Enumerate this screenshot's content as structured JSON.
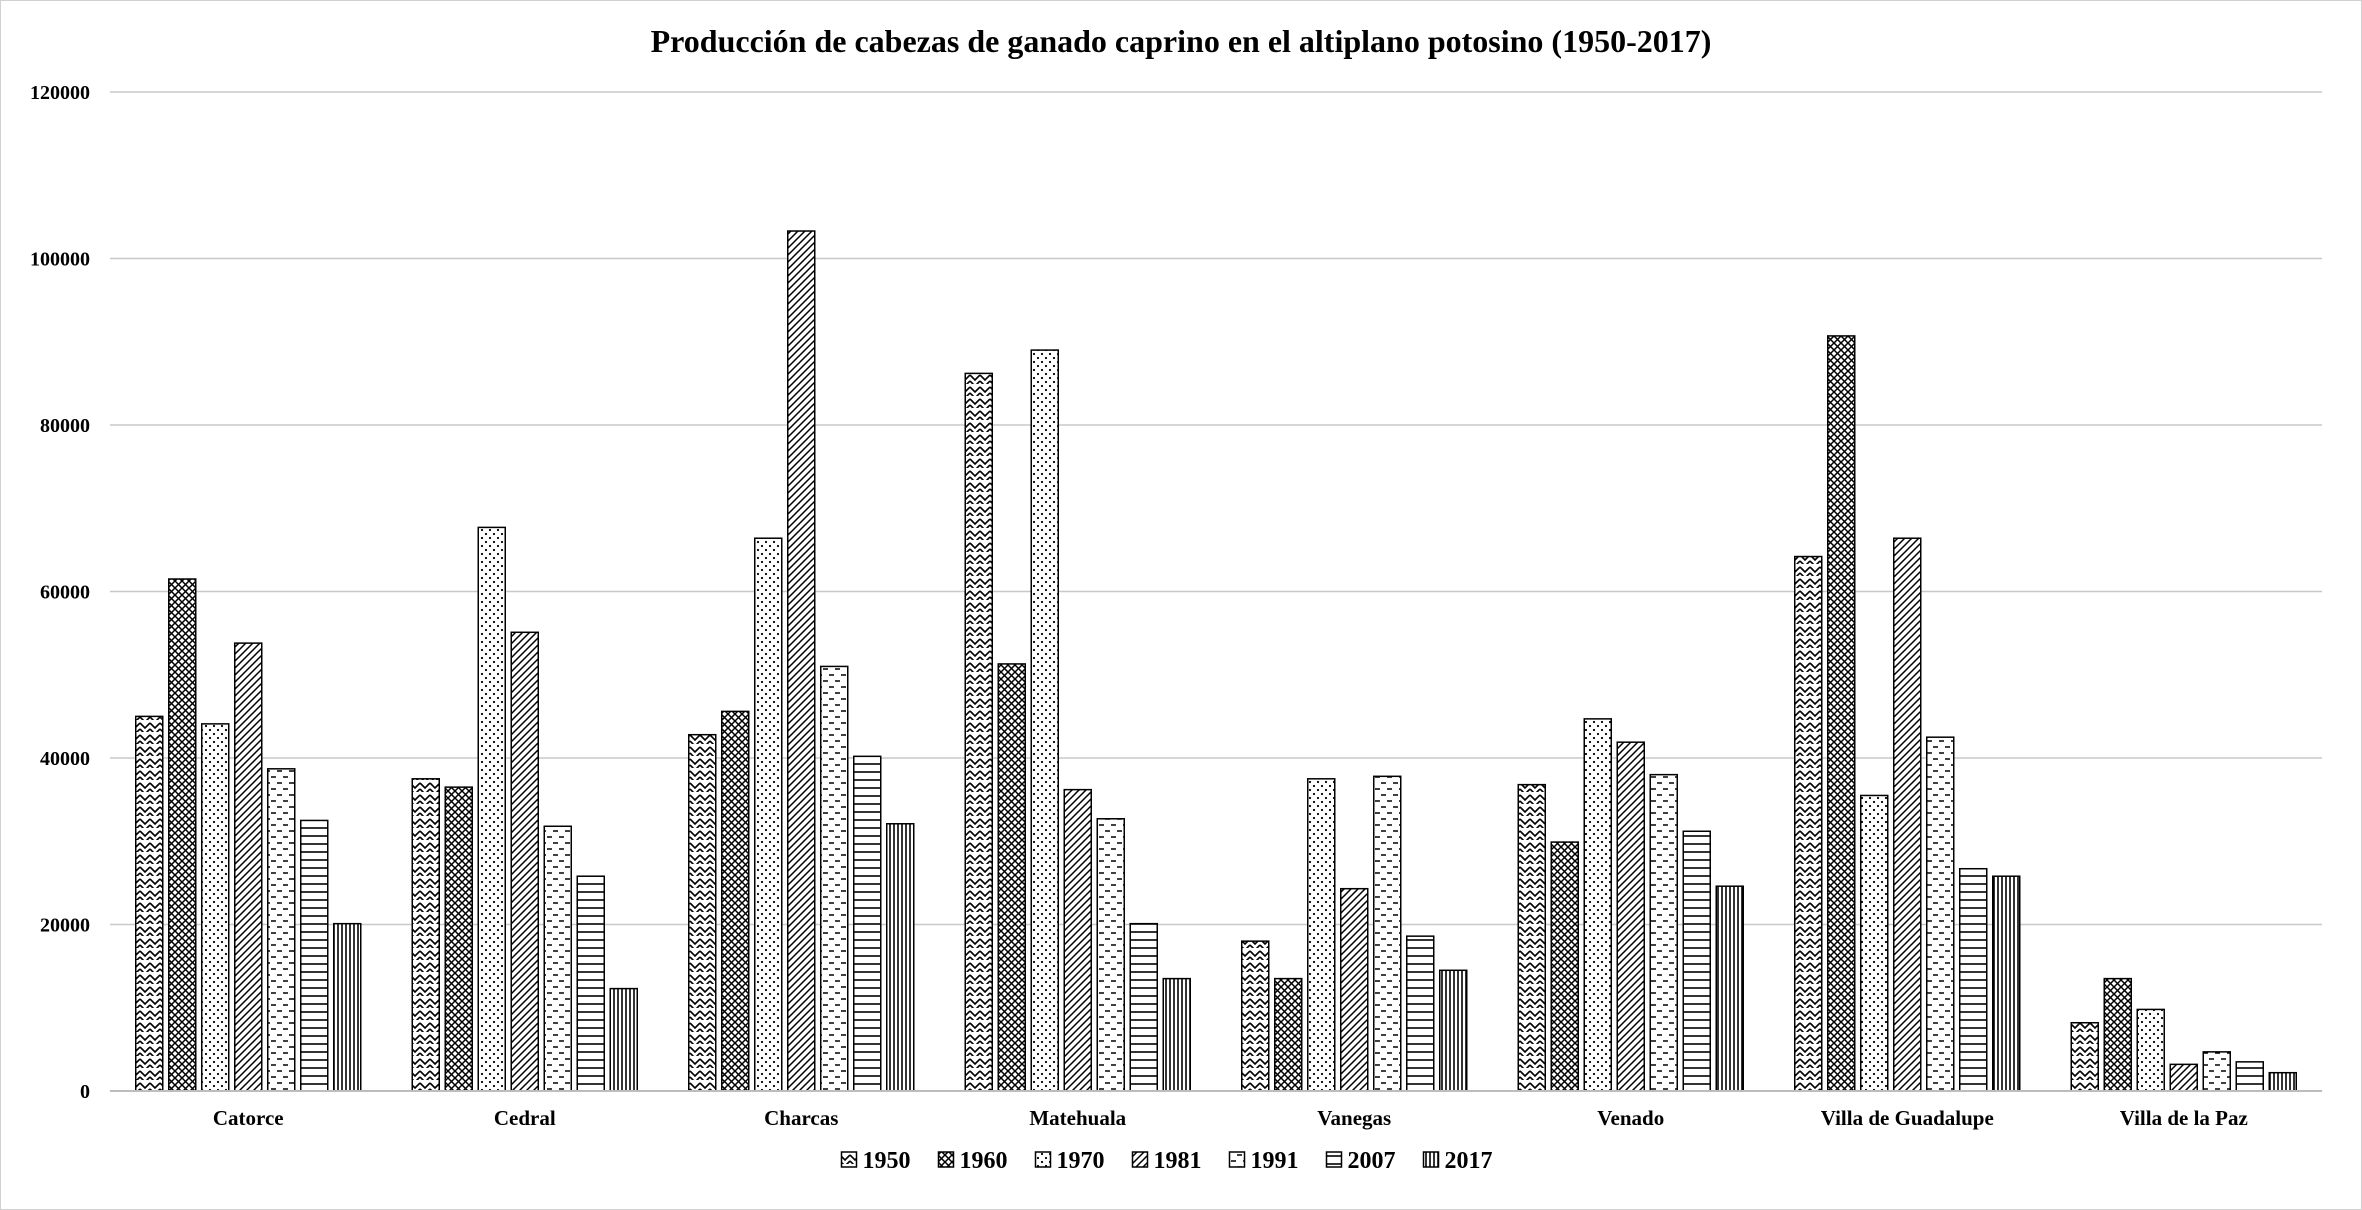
{
  "chart_data": {
    "type": "bar",
    "title": "Producción de cabezas de ganado caprino en el altiplano potosino (1950-2017)",
    "xlabel": "",
    "ylabel": "",
    "ylim": [
      0,
      120000
    ],
    "yticks": [
      0,
      20000,
      40000,
      60000,
      80000,
      100000,
      120000
    ],
    "ytick_labels": [
      "0",
      "20000",
      "40000",
      "60000",
      "80000",
      "100000",
      "120000"
    ],
    "grid": true,
    "legend_position": "bottom",
    "categories": [
      "Catorce",
      "Cedral",
      "Charcas",
      "Matehuala",
      "Vanegas",
      "Venado",
      "Villa de Guadalupe",
      "Villa de la Paz"
    ],
    "series": [
      {
        "name": "1950",
        "pattern": "zigzag",
        "values": [
          45000,
          37500,
          42800,
          86200,
          18000,
          36800,
          64200,
          8200
        ]
      },
      {
        "name": "1960",
        "pattern": "crosshatch",
        "values": [
          61500,
          36500,
          45600,
          51300,
          13500,
          29900,
          90700,
          13500
        ]
      },
      {
        "name": "1970",
        "pattern": "dots",
        "values": [
          44100,
          67700,
          66400,
          89000,
          37500,
          44700,
          35500,
          9800
        ]
      },
      {
        "name": "1981",
        "pattern": "diagonal",
        "values": [
          53800,
          55100,
          103300,
          36200,
          24300,
          41900,
          66400,
          3200
        ]
      },
      {
        "name": "1991",
        "pattern": "dashes",
        "values": [
          38700,
          31800,
          51000,
          32700,
          37800,
          38000,
          42500,
          4700
        ]
      },
      {
        "name": "2007",
        "pattern": "horizontal",
        "values": [
          32500,
          25800,
          40200,
          20100,
          18600,
          31200,
          26700,
          3500
        ]
      },
      {
        "name": "2017",
        "pattern": "vertical",
        "values": [
          20100,
          12300,
          32100,
          13500,
          14500,
          24600,
          25800,
          2200
        ]
      }
    ]
  }
}
